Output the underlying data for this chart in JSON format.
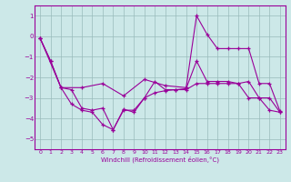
{
  "xlabel": "Windchill (Refroidissement éolien,°C)",
  "background_color": "#cce8e8",
  "line_color": "#990099",
  "grid_color": "#99bbbb",
  "xlim": [
    -0.5,
    23.5
  ],
  "ylim": [
    -5.5,
    1.5
  ],
  "yticks": [
    -5,
    -4,
    -3,
    -2,
    -1,
    0,
    1
  ],
  "xticks": [
    0,
    1,
    2,
    3,
    4,
    5,
    6,
    7,
    8,
    9,
    10,
    11,
    12,
    13,
    14,
    15,
    16,
    17,
    18,
    19,
    20,
    21,
    22,
    23
  ],
  "line1_x": [
    0,
    1,
    2,
    3,
    4,
    5,
    6,
    7,
    8,
    9,
    10,
    11,
    12,
    13,
    14,
    15,
    16,
    17,
    18,
    19,
    20,
    21,
    22,
    23
  ],
  "line1_y": [
    -0.1,
    -1.2,
    -2.5,
    -2.6,
    -3.5,
    -3.6,
    -3.5,
    -4.55,
    -3.6,
    -3.6,
    -3.0,
    -2.2,
    -2.6,
    -2.6,
    -2.6,
    -2.3,
    -2.3,
    -2.3,
    -2.3,
    -2.3,
    -2.2,
    -3.0,
    -3.0,
    -3.7
  ],
  "line2_x": [
    0,
    1,
    2,
    3,
    4,
    5,
    6,
    7,
    8,
    9,
    10,
    11,
    12,
    13,
    14,
    15,
    16,
    17,
    18,
    19,
    20,
    21,
    22,
    23
  ],
  "line2_y": [
    -0.1,
    -1.2,
    -2.5,
    -3.3,
    -3.6,
    -3.7,
    -4.3,
    -4.55,
    -3.55,
    -3.7,
    -3.0,
    -2.75,
    -2.65,
    -2.6,
    -2.55,
    -1.2,
    -2.2,
    -2.2,
    -2.2,
    -2.3,
    -3.0,
    -3.0,
    -3.6,
    -3.7
  ],
  "line3_x": [
    0,
    2,
    4,
    6,
    8,
    10,
    12,
    14,
    15,
    16,
    17,
    18,
    19,
    20,
    21,
    22,
    23
  ],
  "line3_y": [
    -0.1,
    -2.5,
    -2.5,
    -2.3,
    -2.9,
    -2.1,
    -2.4,
    -2.5,
    1.0,
    0.1,
    -0.6,
    -0.6,
    -0.6,
    -0.6,
    -2.3,
    -2.3,
    -3.65
  ]
}
